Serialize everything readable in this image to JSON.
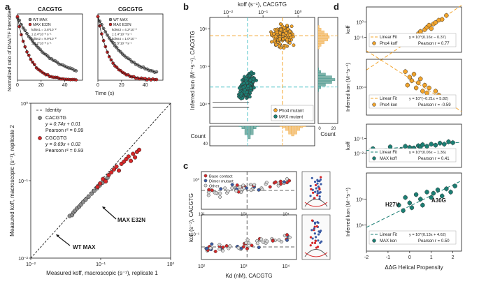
{
  "figure": {
    "colors": {
      "red": "#d62728",
      "grey": "#8c8c8c",
      "orange": "#f2a42b",
      "teal": "#1b7f74",
      "blue": "#3b5ba5",
      "cyan": "#4ec3c7",
      "dark": "#1a1a1a"
    }
  },
  "chart_data": [
    {
      "id": "a_top_left",
      "panel": "a",
      "type": "line",
      "title": "CACGTG",
      "ylabel": "Normalized ratio of DNA/TF intensities",
      "xlabel": "Time (s)",
      "xlim": [
        0,
        55
      ],
      "ylim": [
        0,
        1.05
      ],
      "xticks": [
        0,
        20,
        40
      ],
      "legend": [
        "WT MAX",
        "MAX E32N"
      ],
      "annotations": [
        "kdiss1 = 3.8*10⁻²",
        "± 2.4*10⁻³ s⁻¹",
        "kdiss2 = 9.9*10⁻²",
        "± 1.2*10⁻³ s⁻¹"
      ],
      "series": [
        {
          "name": "WT MAX",
          "rate": 0.038
        },
        {
          "name": "MAX E32N",
          "rate": 0.099
        }
      ]
    },
    {
      "id": "a_top_right",
      "panel": "a",
      "type": "line",
      "title": "CGCGTG",
      "xlim": [
        0,
        55
      ],
      "ylim": [
        0,
        1.05
      ],
      "xticks": [
        0,
        20,
        40
      ],
      "legend": [
        "WT MAX",
        "MAX E32N"
      ],
      "annotations": [
        "kdiss3 = 4.2*10⁻²",
        "± 2.4*10⁻³ s⁻¹",
        "kdiss4 = 1.0*10⁻¹",
        "± 5.5*10⁻³ s⁻¹"
      ],
      "series": [
        {
          "name": "WT MAX",
          "rate": 0.042
        },
        {
          "name": "MAX E32N",
          "rate": 0.1
        }
      ]
    },
    {
      "id": "a_bottom",
      "panel": "a",
      "type": "scatter",
      "xlabel": "Measured koff, macroscopic (s⁻¹), replicate 1",
      "ylabel": "Measured koff, macroscopic (s⁻¹), replicate 2",
      "xlim": [
        0.01,
        1
      ],
      "ylim": [
        0.01,
        1
      ],
      "scale": "log",
      "ticks": [
        "10⁻²",
        "10⁻¹",
        "10⁰"
      ],
      "legend": [
        "Identity",
        "CACGTG",
        "y = 0.74x + 0.01",
        "Pearson r² = 0.99",
        "CGCGTG",
        "y = 0.69x + 0.02",
        "Pearson r² = 0.93"
      ],
      "labels": [
        "MAX E32N",
        "WT MAX"
      ],
      "series": [
        {
          "name": "CACGTG",
          "x": [
            0.036,
            0.039,
            0.041,
            0.043,
            0.046,
            0.049,
            0.052,
            0.056,
            0.061,
            0.067,
            0.074,
            0.081,
            0.089,
            0.097,
            0.106,
            0.115,
            0.125
          ],
          "y": [
            0.035,
            0.036,
            0.039,
            0.041,
            0.044,
            0.046,
            0.049,
            0.053,
            0.057,
            0.062,
            0.068,
            0.074,
            0.08,
            0.087,
            0.094,
            0.101,
            0.109
          ]
        },
        {
          "name": "CGCGTG",
          "x": [
            0.09,
            0.098,
            0.108,
            0.118,
            0.13,
            0.142,
            0.155,
            0.168,
            0.182,
            0.198,
            0.215,
            0.232,
            0.25,
            0.27,
            0.29,
            0.31,
            0.33,
            0.355
          ],
          "y": [
            0.083,
            0.092,
            0.105,
            0.098,
            0.118,
            0.128,
            0.14,
            0.152,
            0.135,
            0.165,
            0.176,
            0.19,
            0.205,
            0.18,
            0.222,
            0.2,
            0.235,
            0.25
          ]
        }
      ]
    },
    {
      "id": "b",
      "panel": "b",
      "type": "scatter",
      "top_xlabel": "koff (s⁻¹), CACGTG",
      "ylabel": "Inferred kon (M⁻¹s⁻¹), CACGTG",
      "xlim": [
        0.003,
        3
      ],
      "ylim": [
        3000,
        2000000
      ],
      "scale": "log",
      "xticks": [
        "10⁻²",
        "10⁻¹",
        "10⁰"
      ],
      "yticks": [
        "10⁴",
        "10⁵",
        "10⁶"
      ],
      "legend": [
        "Pho4 mutant",
        "MAX mutant"
      ],
      "marginal_xlabel": "Count",
      "marginal_ylabel": "Count",
      "marginal_ticks": [
        "0",
        "20",
        "40"
      ],
      "series": [
        {
          "name": "Pho4 mutant",
          "center_x": 0.36,
          "center_y": 650000,
          "n": 150
        },
        {
          "name": "MAX mutant",
          "center_x": 0.036,
          "center_y": 28000,
          "n": 210
        }
      ]
    },
    {
      "id": "c",
      "panel": "c",
      "type": "scatter",
      "xlabel": "Kd (nM), CACGTG",
      "ylabel": "koff (s⁻¹), CACGTG",
      "xticks": [
        "10²",
        "10³",
        "10⁴"
      ],
      "yticks": [
        "10⁰",
        "10⁻¹"
      ],
      "legend": [
        "Base contact",
        "Dimer mutant",
        "Other"
      ]
    },
    {
      "id": "d1",
      "panel": "d",
      "type": "scatter",
      "ylabel": "koff",
      "yticks": [
        "10⁰",
        "10⁻¹"
      ],
      "legend": [
        "Linear Fit",
        "Pho4 koff"
      ],
      "fit": "y = 10^(0.16x − 0.37)",
      "pearson": "Pearson r = 0.77",
      "x": [
        -0.2,
        -0.1,
        0.0,
        0.1,
        0.2,
        0.3,
        0.4,
        0.5,
        0.6,
        0.7,
        0.8,
        0.9,
        1.0,
        1.1,
        1.2,
        1.35,
        1.5,
        1.7
      ],
      "y": [
        0.11,
        0.14,
        0.13,
        0.17,
        0.2,
        0.16,
        0.25,
        0.3,
        0.22,
        0.35,
        0.42,
        0.5,
        0.38,
        0.55,
        0.62,
        0.75,
        0.8,
        1.1
      ]
    },
    {
      "id": "d2",
      "panel": "d",
      "type": "scatter",
      "ylabel": "Inferred kon (M⁻¹s⁻¹)",
      "yticks": [
        "10⁶"
      ],
      "legend": [
        "Linear Fit",
        "Pho4 kon"
      ],
      "fit": "y = 10^(−0.21x + 5.82)",
      "pearson": "Pearson r = -0.59",
      "x": [
        -0.2,
        -0.1,
        0.0,
        0.1,
        0.2,
        0.3,
        0.4,
        0.5,
        0.6,
        0.7,
        0.8,
        0.9,
        1.0,
        1.2,
        1.35,
        1.5,
        1.7
      ],
      "y": [
        1500000,
        700000,
        1100000,
        900000,
        1300000,
        600000,
        800000,
        1000000,
        500000,
        700000,
        450000,
        600000,
        350000,
        500000,
        400000,
        300000,
        260000
      ]
    },
    {
      "id": "d3",
      "panel": "d",
      "type": "scatter",
      "ylabel": "koff",
      "yticks": [
        "10⁻¹",
        "10⁻²"
      ],
      "legend": [
        "Linear Fit",
        "MAX koff"
      ],
      "fit": "y = 10^(0.06x − 1.36)",
      "pearson": "Pearson r = 0.41",
      "x": [
        -1.7,
        -0.9,
        -0.4,
        -0.2,
        0.0,
        0.2,
        0.4,
        0.5,
        0.6,
        0.8,
        1.0,
        1.2,
        1.4,
        1.6,
        1.8,
        2.0
      ],
      "y": [
        0.042,
        0.045,
        0.04,
        0.046,
        0.044,
        0.043,
        0.047,
        0.045,
        0.049,
        0.046,
        0.05,
        0.048,
        0.052,
        0.05,
        0.055,
        0.053
      ]
    },
    {
      "id": "d4",
      "panel": "d",
      "type": "scatter",
      "ylabel": "Inferred kon (M⁻¹s⁻¹)",
      "xlabel": "ΔΔG Helical Propensity",
      "xlim": [
        -2,
        2.4
      ],
      "xticks": [
        "-2",
        "-1",
        "0",
        "1",
        "2"
      ],
      "yticks": [
        "10⁵",
        "10⁴"
      ],
      "legend": [
        "Linear Fit",
        "MAX kon"
      ],
      "fit": "y = 10^(0.13x + 4.62)",
      "pearson": "Pearson r = 0.50",
      "labels": [
        "H27V",
        "A30G"
      ],
      "x": [
        -1.7,
        -0.5,
        -0.3,
        -0.2,
        0.0,
        0.1,
        0.3,
        0.5,
        0.6,
        0.8,
        1.0,
        1.1,
        1.3,
        1.5,
        1.7,
        1.9,
        2.1
      ],
      "y": [
        7000,
        40000,
        30000,
        60000,
        45000,
        35000,
        70000,
        55000,
        40000,
        80000,
        60000,
        75000,
        90000,
        65000,
        95000,
        80000,
        110000
      ]
    }
  ],
  "panel_labels": [
    "a",
    "b",
    "c",
    "d"
  ]
}
